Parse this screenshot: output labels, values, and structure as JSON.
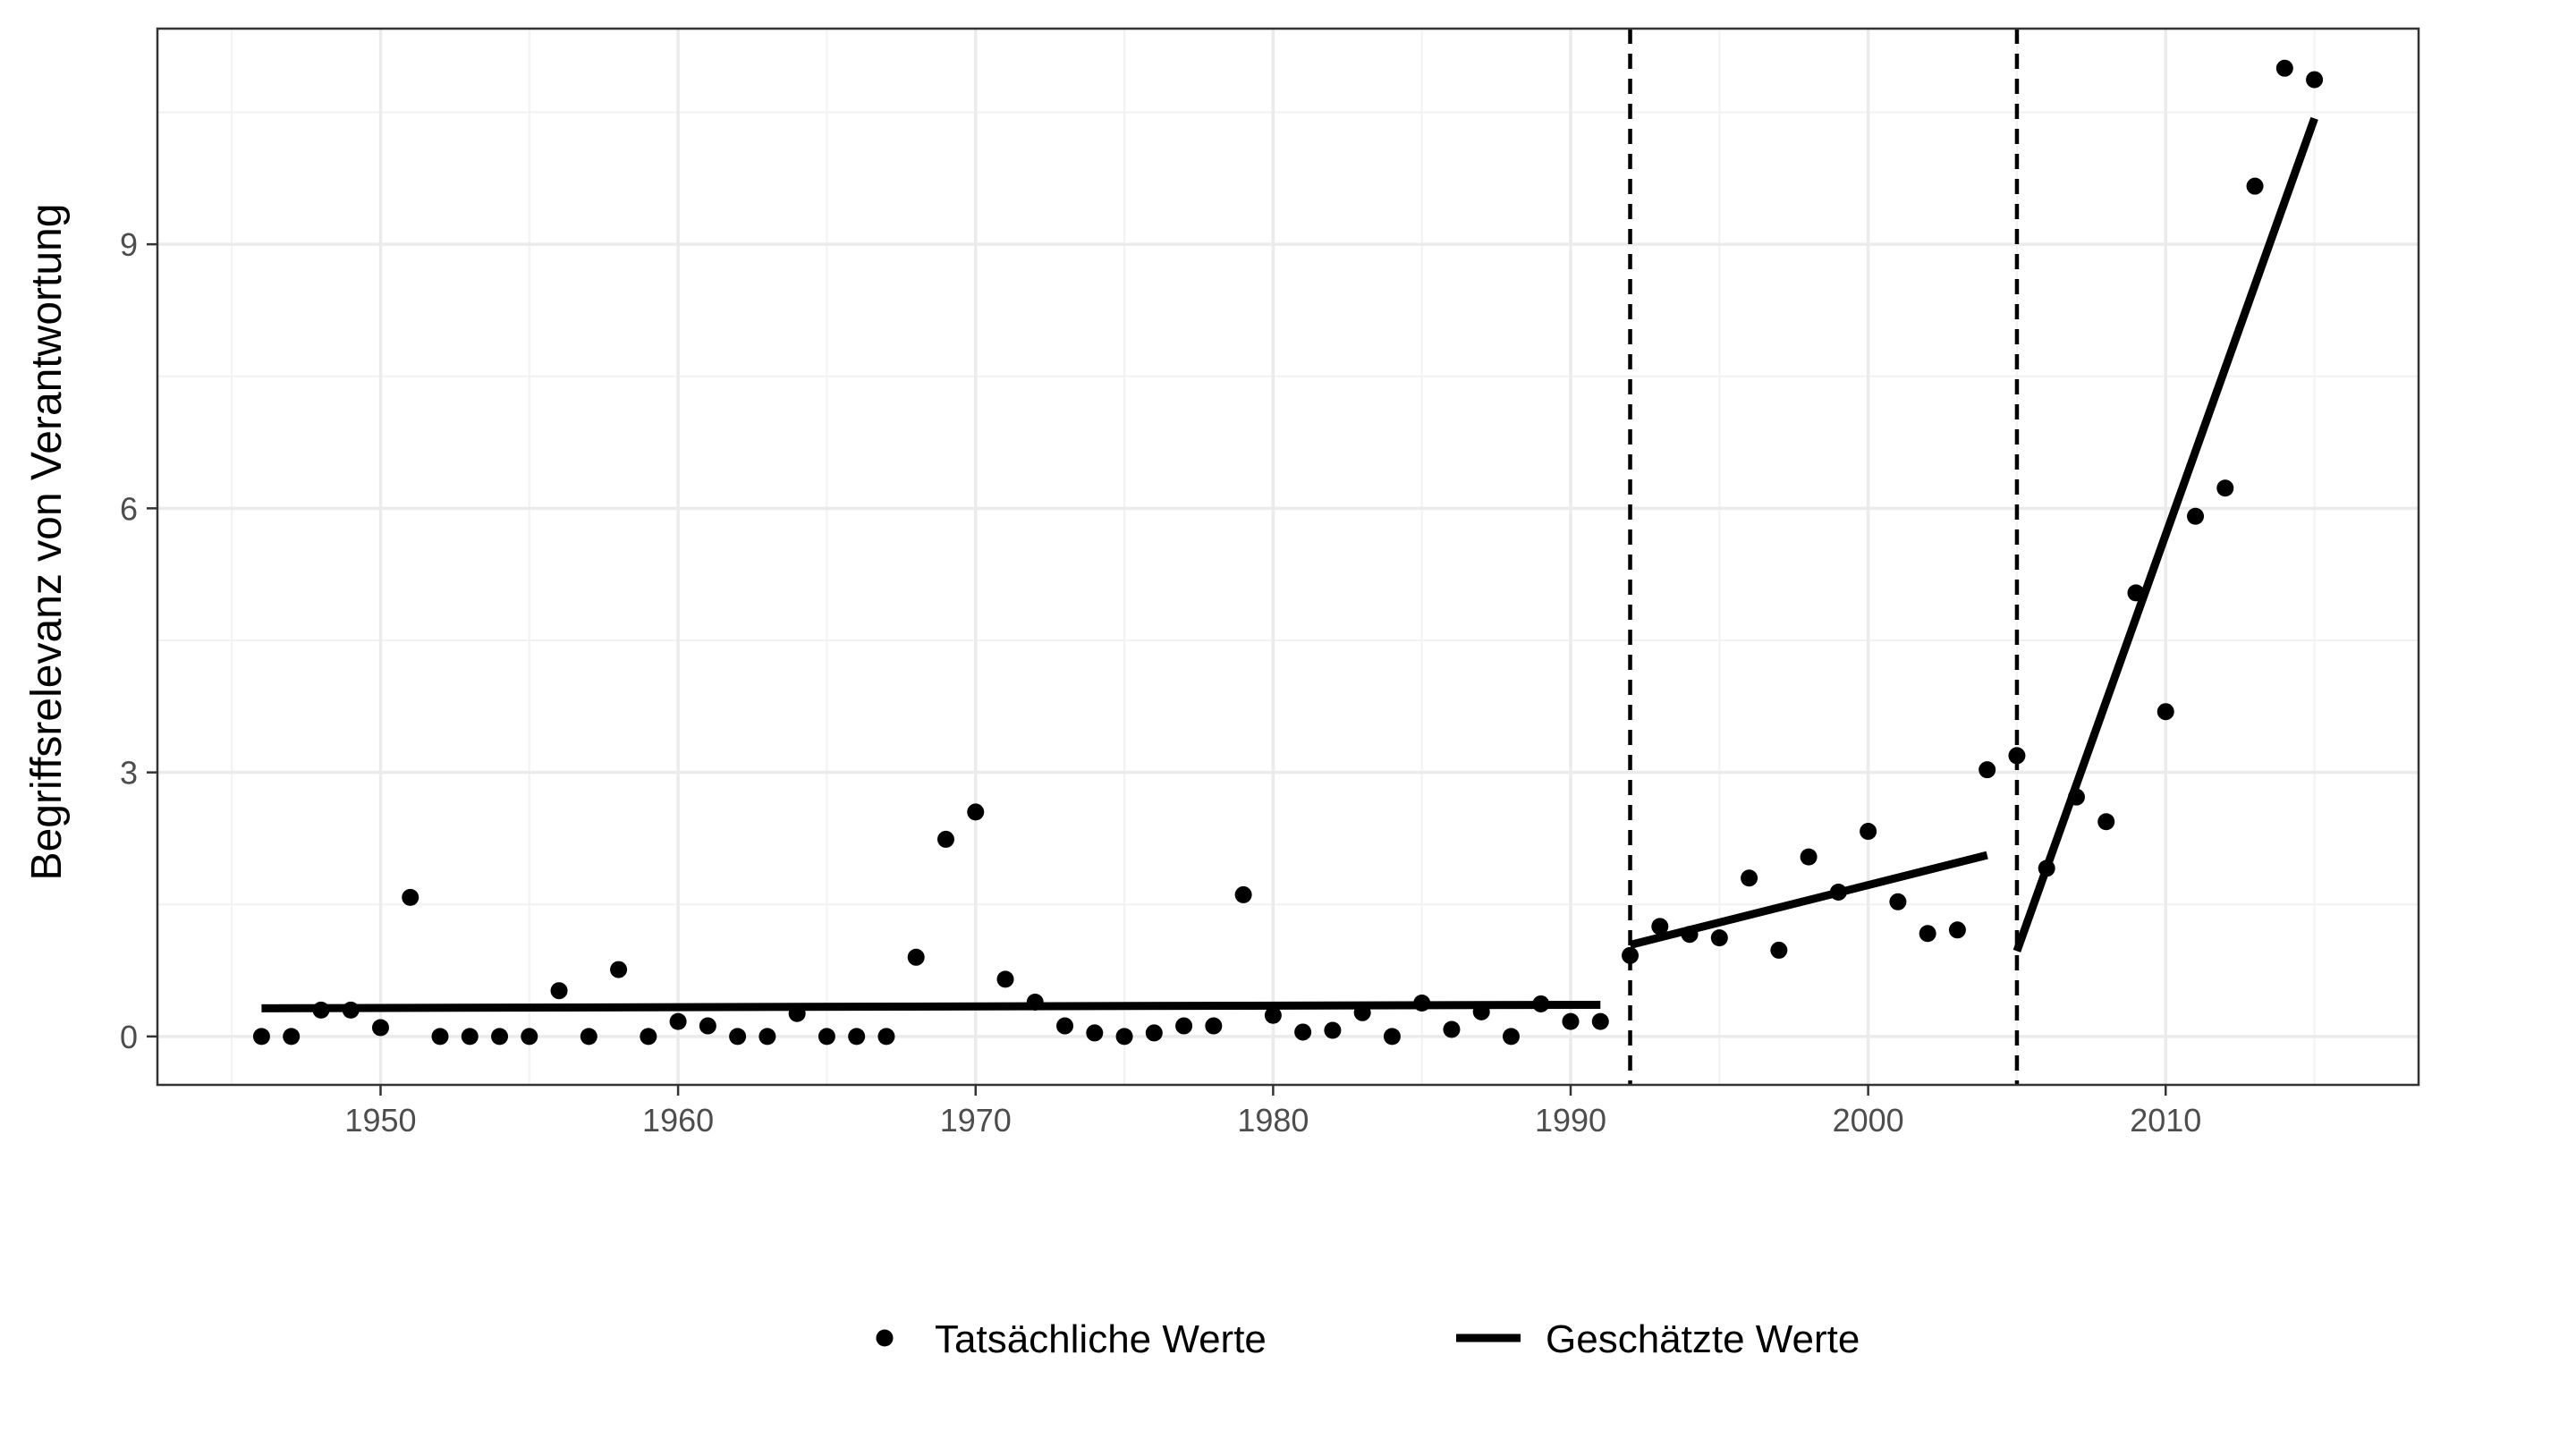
{
  "chart_data": {
    "type": "scatter",
    "title": "",
    "xlabel": "",
    "ylabel": "Begriffsrelevanz von Verantwortung",
    "xlim": [
      1942.5,
      2018.5
    ],
    "ylim": [
      -0.55,
      11.45
    ],
    "x_ticks": [
      1950,
      1960,
      1970,
      1980,
      1990,
      2000,
      2010
    ],
    "y_ticks": [
      0,
      3,
      6,
      9
    ],
    "grid": true,
    "legend_position": "bottom",
    "breakpoints": [
      1992,
      2005
    ],
    "series": [
      {
        "name": "Tatsächliche Werte",
        "kind": "points",
        "color": "#000000",
        "points": [
          [
            1946,
            0.0
          ],
          [
            1947,
            0.0
          ],
          [
            1948,
            0.3
          ],
          [
            1949,
            0.3
          ],
          [
            1950,
            0.1
          ],
          [
            1951,
            1.58
          ],
          [
            1952,
            0.0
          ],
          [
            1953,
            0.0
          ],
          [
            1954,
            0.0
          ],
          [
            1955,
            0.0
          ],
          [
            1956,
            0.52
          ],
          [
            1957,
            0.0
          ],
          [
            1958,
            0.76
          ],
          [
            1959,
            0.0
          ],
          [
            1960,
            0.17
          ],
          [
            1961,
            0.12
          ],
          [
            1962,
            0.0
          ],
          [
            1963,
            0.0
          ],
          [
            1964,
            0.26
          ],
          [
            1965,
            0.0
          ],
          [
            1966,
            0.0
          ],
          [
            1967,
            0.0
          ],
          [
            1968,
            0.9
          ],
          [
            1969,
            2.24
          ],
          [
            1970,
            2.55
          ],
          [
            1971,
            0.65
          ],
          [
            1972,
            0.39
          ],
          [
            1973,
            0.12
          ],
          [
            1974,
            0.04
          ],
          [
            1975,
            0.0
          ],
          [
            1976,
            0.04
          ],
          [
            1977,
            0.12
          ],
          [
            1978,
            0.12
          ],
          [
            1979,
            1.61
          ],
          [
            1980,
            0.24
          ],
          [
            1981,
            0.05
          ],
          [
            1982,
            0.07
          ],
          [
            1983,
            0.27
          ],
          [
            1984,
            0.0
          ],
          [
            1985,
            0.38
          ],
          [
            1986,
            0.08
          ],
          [
            1987,
            0.28
          ],
          [
            1988,
            0.0
          ],
          [
            1989,
            0.37
          ],
          [
            1990,
            0.17
          ],
          [
            1991,
            0.17
          ],
          [
            1992,
            0.92
          ],
          [
            1993,
            1.25
          ],
          [
            1994,
            1.16
          ],
          [
            1995,
            1.12
          ],
          [
            1996,
            1.8
          ],
          [
            1997,
            0.98
          ],
          [
            1998,
            2.04
          ],
          [
            1999,
            1.64
          ],
          [
            2000,
            2.33
          ],
          [
            2001,
            1.53
          ],
          [
            2002,
            1.17
          ],
          [
            2003,
            1.21
          ],
          [
            2004,
            3.03
          ],
          [
            2005,
            3.19
          ],
          [
            2006,
            1.91
          ],
          [
            2007,
            2.72
          ],
          [
            2008,
            2.44
          ],
          [
            2009,
            5.04
          ],
          [
            2010,
            3.69
          ],
          [
            2011,
            5.91
          ],
          [
            2012,
            6.23
          ],
          [
            2013,
            9.66
          ],
          [
            2014,
            11.0
          ],
          [
            2015,
            10.87
          ]
        ]
      },
      {
        "name": "Geschätzte Werte",
        "kind": "lines",
        "color": "#000000",
        "segments": [
          [
            [
              1946,
              0.32
            ],
            [
              1991,
              0.36
            ]
          ],
          [
            [
              1992,
              1.04
            ],
            [
              2004,
              2.06
            ]
          ],
          [
            [
              2005,
              0.97
            ],
            [
              2015,
              10.43
            ]
          ]
        ]
      }
    ]
  }
}
